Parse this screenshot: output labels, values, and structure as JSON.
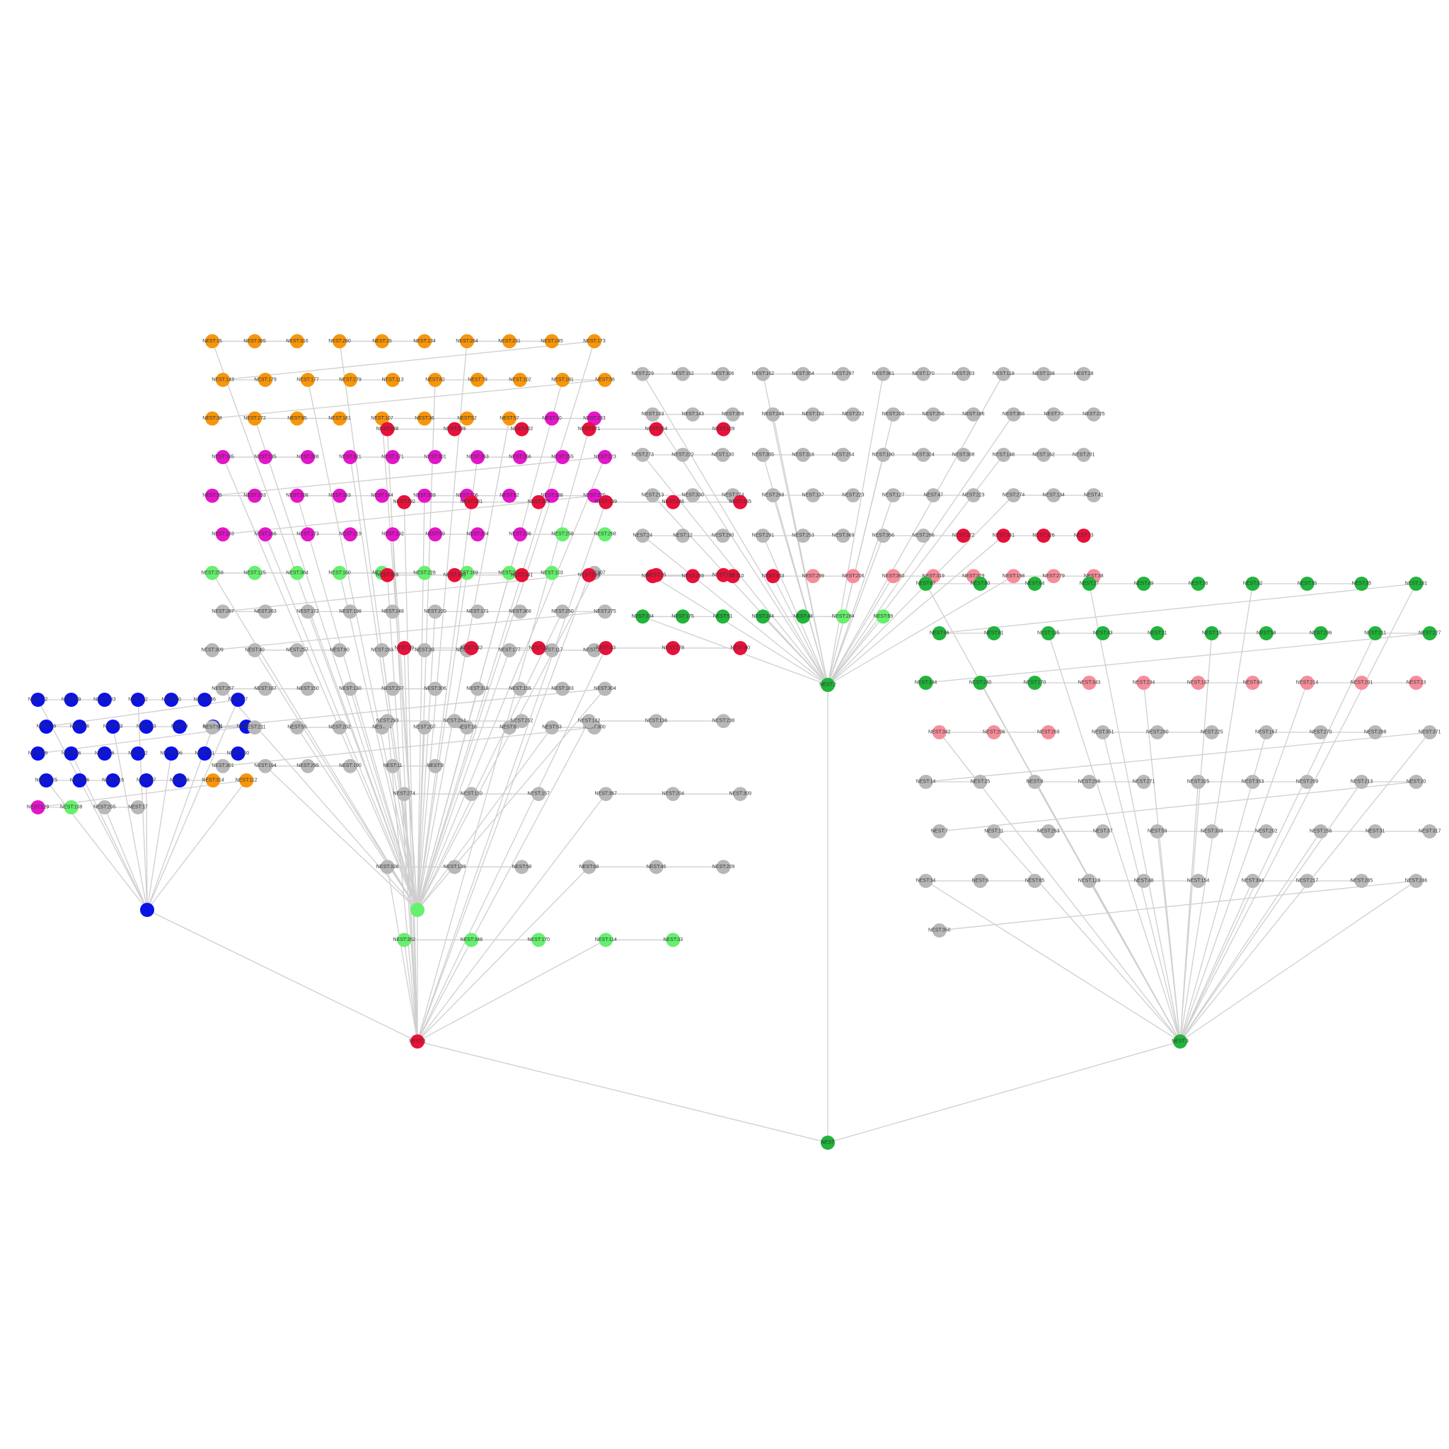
{
  "diagram": {
    "type": "hierarchical-network",
    "colors": {
      "edge": "#cfcfcf",
      "gray": "#b8b8b8",
      "red": "#e8113a",
      "pink": "#f58e9b",
      "green": "#22b43c",
      "lightgreen": "#66f06e",
      "blue": "#0b12e6",
      "magenta": "#e316c8",
      "orange": "#f7960c"
    },
    "root": {
      "id": "NEST",
      "color": "green"
    },
    "branches": [
      {
        "id": "NEST:1",
        "color": "red"
      },
      {
        "id": "NEST:2",
        "color": "green"
      },
      {
        "id": "NEST:3",
        "color": "green"
      }
    ],
    "clusters": [
      {
        "hub": "NEST:7",
        "hub_color": "gray",
        "groups": [
          {
            "color": "gray",
            "labels": [
              "NEST:229",
              "NEST:152",
              "NEST:306",
              "NEST:162",
              "NEST:354",
              "NEST:297",
              "NEST:361",
              "NEST:170",
              "NEST:203",
              "NEST:118",
              "NEST:138",
              "NEST:28",
              "NEST:163",
              "NEST:143",
              "NEST:358",
              "NEST:246",
              "NEST:192",
              "NEST:232",
              "NEST:200",
              "NEST:256",
              "NEST:186",
              "NEST:366",
              "NEST:70",
              "NEST:225",
              "NEST:273",
              "NEST:222",
              "NEST:130",
              "NEST:305",
              "NEST:318",
              "NEST:254",
              "NEST:180",
              "NEST:324",
              "NEST:308",
              "NEST:148",
              "NEST:162",
              "NEST:201",
              "NEST:213",
              "NEST:330",
              "NEST:274",
              "NEST:268",
              "NEST:137",
              "NEST:223",
              "NEST:127",
              "NEST:47",
              "NEST:223",
              "NEST:274",
              "NEST:134",
              "NEST:41",
              "NEST:24",
              "NEST:12",
              "NEST:290",
              "NEST:291",
              "NEST:253",
              "NEST:369",
              "NEST:356",
              "NEST:266"
            ]
          },
          {
            "color": "red",
            "labels": [
              "NEST:322",
              "NEST:341",
              "NEST:326",
              "NEST:73",
              "NEST:312",
              "NEST:293",
              "NEST:310",
              "NEST:303"
            ]
          },
          {
            "color": "pink",
            "labels": [
              "NEST:299",
              "NEST:206",
              "NEST:360",
              "NEST:319",
              "NEST:329",
              "NEST:198",
              "NEST:279",
              "NEST:38"
            ]
          },
          {
            "color": "green",
            "labels": [
              "NEST:234",
              "NEST:175",
              "NEST:51",
              "NEST:244",
              "NEST:48"
            ]
          },
          {
            "color": "lightgreen",
            "labels": [
              "NEST:284",
              "NEST:69"
            ]
          }
        ]
      },
      {
        "hub": "NEST:5",
        "hub_color": "blue",
        "groups": [
          {
            "color": "blue",
            "labels": [
              "NEST:72",
              "NEST:99",
              "NEST:133",
              "NEST:92",
              "NEST:90",
              "NEST:146",
              "NEST:77",
              "NEST:78",
              "NEST:46",
              "NEST:43",
              "NEST:23",
              "NEST:4",
              "NEST:71",
              "NEST:97",
              "NEST:19",
              "NEST:26",
              "NEST:16",
              "NEST:42",
              "NEST:196",
              "NEST:81",
              "NEST:100",
              "NEST:125",
              "NEST:66",
              "NEST:116",
              "NEST:87",
              "NEST:98"
            ]
          },
          {
            "color": "orange",
            "labels": [
              "NEST:314",
              "NEST:112"
            ]
          },
          {
            "color": "magenta",
            "labels": [
              "NEST:129"
            ]
          },
          {
            "color": "lightgreen",
            "labels": [
              "NEST:108"
            ]
          },
          {
            "color": "gray",
            "labels": [
              "NEST:205",
              "NEST:17"
            ]
          }
        ]
      },
      {
        "hub": "NEST:4",
        "hub_color": "lightgreen",
        "groups": [
          {
            "color": "orange",
            "labels": [
              "NEST:15",
              "NEST:365",
              "NEST:316",
              "NEST:280",
              "NEST:25",
              "NEST:134",
              "NEST:264",
              "NEST:231",
              "NEST:245",
              "NEST:173",
              "NEST:143",
              "NEST:179",
              "NEST:177",
              "NEST:279",
              "NEST:113",
              "NEST:82",
              "NEST:79",
              "NEST:102",
              "NEST:181",
              "NEST:56",
              "NEST:38",
              "NEST:272",
              "NEST:85",
              "NEST:181",
              "NEST:107",
              "NEST:36",
              "NEST:52",
              "NEST:57"
            ]
          },
          {
            "color": "magenta",
            "labels": [
              "NEST:10",
              "NEST:233",
              "NEST:165",
              "NEST:235",
              "NEST:288",
              "NEST:321",
              "NEST:171",
              "NEST:301",
              "NEST:263",
              "NEST:266",
              "NEST:255",
              "NEST:223",
              "NEST:35",
              "NEST:193",
              "NEST:208",
              "NEST:183",
              "NEST:144",
              "NEST:339",
              "NEST:106",
              "NEST:62",
              "NEST:188",
              "NEST:220",
              "NEST:183",
              "NEST:166",
              "NEST:173",
              "NEST:219",
              "NEST:192",
              "NEST:59",
              "NEST:264",
              "NEST:236"
            ]
          },
          {
            "color": "lightgreen",
            "labels": [
              "NEST:258",
              "NEST:268",
              "NEST:259",
              "NEST:125",
              "NEST:364",
              "NEST:160",
              "NEST:91",
              "NEST:228",
              "NEST:169",
              "NEST:210",
              "NEST:103"
            ]
          },
          {
            "color": "gray",
            "labels": [
              "NEST:307",
              "NEST:287",
              "NEST:263",
              "NEST:172",
              "NEST:198",
              "NEST:248",
              "NEST:220",
              "NEST:171",
              "NEST:368",
              "NEST:250",
              "NEST:275",
              "NEST:309",
              "NEST:40",
              "NEST:257",
              "NEST:60",
              "NEST:283",
              "NEST:39",
              "NEST:260",
              "NEST:177",
              "NEST:117",
              "NEST:184",
              "NEST:267",
              "NEST:187",
              "NEST:150",
              "NEST:130",
              "NEST:237",
              "NEST:306",
              "NEST:318",
              "NEST:155",
              "NEST:183",
              "NEST:304",
              "NEST:93",
              "NEST:211",
              "NEST:55",
              "NEST:202",
              "NEST:44",
              "NEST:207",
              "NEST:18",
              "NEST:89",
              "NEST:53",
              "NEST:300",
              "NEST:301",
              "NEST:194",
              "NEST:295",
              "NEST:190",
              "NEST:11",
              "NEST:9"
            ]
          }
        ]
      },
      {
        "hub": "NEST:1-leaves",
        "hub_color": "red",
        "groups": [
          {
            "color": "red",
            "labels": [
              "NEST:288",
              "NEST:339",
              "NEST:202",
              "NEST:271",
              "NEST:264",
              "NEST:109",
              "NEST:292",
              "NEST:281",
              "NEST:289",
              "NEST:199",
              "NEST:246",
              "NEST:255",
              "NEST:359",
              "NEST:335",
              "NEST:341",
              "NEST:259",
              "NEST:25",
              "NEST:162",
              "NEST:29",
              "NEST:142",
              "NEST:22",
              "NEST:43",
              "NEST:178",
              "NEST:80"
            ]
          },
          {
            "color": "gray",
            "labels": [
              "NEST:293",
              "NEST:294",
              "NEST:252",
              "NEST:142",
              "NEST:136",
              "NEST:238",
              "NEST:274",
              "NEST:110",
              "NEST:157",
              "NEST:367",
              "NEST:204",
              "NEST:309",
              "NEST:328",
              "NEST:139",
              "NEST:58",
              "NEST:68",
              "NEST:45",
              "NEST:209"
            ]
          },
          {
            "color": "lightgreen",
            "labels": [
              "NEST:352",
              "NEST:348",
              "NEST:170",
              "NEST:114",
              "NEST:33"
            ]
          }
        ]
      },
      {
        "hub": "NEST:3-tree",
        "hub_color": "green",
        "groups": [
          {
            "color": "green",
            "labels": [
              "NEST:67",
              "NEST:80",
              "NEST:64",
              "NEST:27",
              "NEST:49",
              "NEST:26",
              "NEST:32",
              "NEST:35",
              "NEST:95",
              "NEST:181",
              "NEST:86",
              "NEST:61",
              "NEST:195",
              "NEST:43",
              "NEST:21",
              "NEST:15",
              "NEST:58",
              "NEST:296",
              "NEST:211",
              "NEST:227",
              "NEST:334",
              "NEST:240",
              "NEST:170"
            ]
          },
          {
            "color": "pink",
            "labels": [
              "NEST:343",
              "NEST:234",
              "NEST:107",
              "NEST:84",
              "NEST:214",
              "NEST:201",
              "NEST:23",
              "NEST:342",
              "NEST:206",
              "NEST:269"
            ]
          },
          {
            "color": "gray",
            "labels": [
              "NEST:351",
              "NEST:290",
              "NEST:225",
              "NEST:167",
              "NEST:270",
              "NEST:288",
              "NEST:371",
              "NEST:14",
              "NEST:25",
              "NEST:8",
              "NEST:296",
              "NEST:271",
              "NEST:325",
              "NEST:353",
              "NEST:209",
              "NEST:213",
              "NEST:20",
              "NEST:7",
              "NEST:11",
              "NEST:263",
              "NEST:37",
              "NEST:59",
              "NEST:339",
              "NEST:202",
              "NEST:156",
              "NEST:31",
              "NEST:317",
              "NEST:34",
              "NEST:6",
              "NEST:65",
              "NEST:128",
              "NEST:48",
              "NEST:154",
              "NEST:394",
              "NEST:217",
              "NEST:285",
              "NEST:246",
              "NEST:350"
            ]
          }
        ]
      }
    ]
  }
}
